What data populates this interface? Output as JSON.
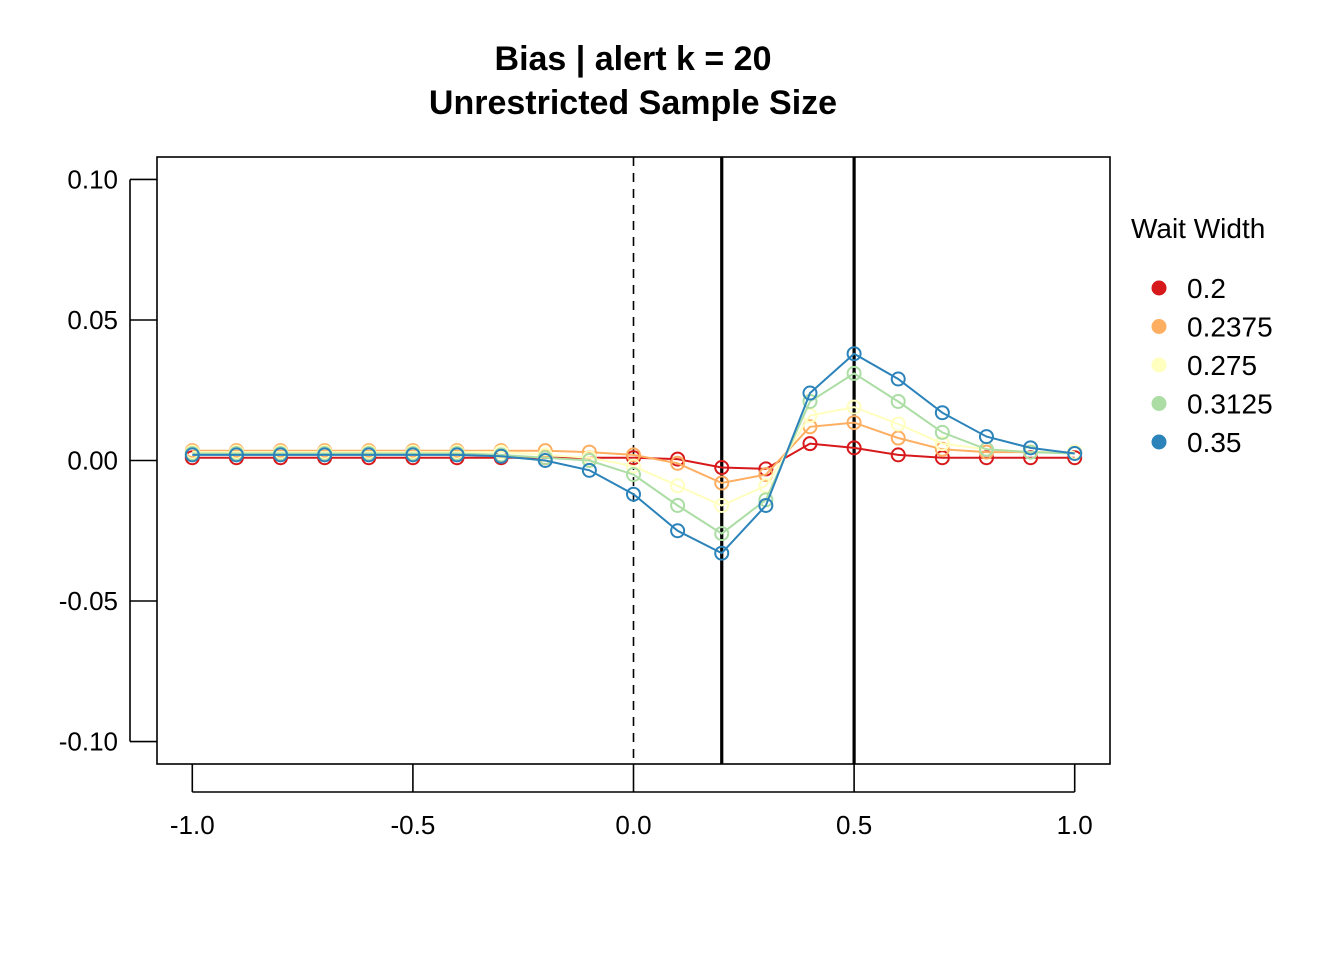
{
  "chart_data": {
    "type": "line",
    "title": "Bias | alert k = 20",
    "subtitle": "Unrestricted Sample Size",
    "xlabel": "",
    "ylabel": "",
    "xlim": [
      -1.08,
      1.08
    ],
    "ylim": [
      -0.108,
      0.108
    ],
    "x_ticks": [
      -1.0,
      -0.5,
      0.0,
      0.5,
      1.0
    ],
    "x_tick_labels": [
      "-1.0",
      "-0.5",
      "0.0",
      "0.5",
      "1.0"
    ],
    "y_ticks": [
      -0.1,
      -0.05,
      0.0,
      0.05,
      0.1
    ],
    "y_tick_labels": [
      "-0.10",
      "-0.05",
      "0.00",
      "0.05",
      "0.10"
    ],
    "grid": false,
    "legend": {
      "title": "Wait Width",
      "placement": "right"
    },
    "vlines": [
      {
        "x": 0.0,
        "style": "dashed"
      },
      {
        "x": 0.2,
        "style": "solid"
      },
      {
        "x": 0.5,
        "style": "solid"
      }
    ],
    "x": [
      -1.0,
      -0.9,
      -0.8,
      -0.7,
      -0.6,
      -0.5,
      -0.4,
      -0.3,
      -0.2,
      -0.1,
      0.0,
      0.1,
      0.2,
      0.3,
      0.4,
      0.5,
      0.6,
      0.7,
      0.8,
      0.9,
      1.0
    ],
    "series": [
      {
        "name": "0.2",
        "color": "#d7191c",
        "values": [
          0.001,
          0.001,
          0.001,
          0.001,
          0.001,
          0.001,
          0.001,
          0.001,
          0.001,
          0.001,
          0.001,
          0.0005,
          -0.0025,
          -0.003,
          0.006,
          0.0045,
          0.002,
          0.001,
          0.001,
          0.001,
          0.001
        ]
      },
      {
        "name": "0.2375",
        "color": "#fdae61",
        "values": [
          0.0035,
          0.0035,
          0.0035,
          0.0035,
          0.0035,
          0.0035,
          0.0035,
          0.0035,
          0.0035,
          0.003,
          0.002,
          -0.001,
          -0.008,
          -0.005,
          0.012,
          0.0135,
          0.008,
          0.004,
          0.003,
          0.003,
          0.003
        ]
      },
      {
        "name": "0.275",
        "color": "#ffffbf",
        "values": [
          0.003,
          0.003,
          0.003,
          0.003,
          0.003,
          0.003,
          0.003,
          0.003,
          0.002,
          0.001,
          -0.002,
          -0.009,
          -0.016,
          -0.009,
          0.016,
          0.019,
          0.013,
          0.006,
          0.004,
          0.003,
          0.003
        ]
      },
      {
        "name": "0.3125",
        "color": "#abdda4",
        "values": [
          0.0025,
          0.0025,
          0.0025,
          0.0025,
          0.0025,
          0.0025,
          0.0025,
          0.002,
          0.001,
          0.0,
          -0.005,
          -0.016,
          -0.026,
          -0.014,
          0.021,
          0.031,
          0.021,
          0.01,
          0.004,
          0.003,
          0.0025
        ]
      },
      {
        "name": "0.35",
        "color": "#2b83ba",
        "values": [
          0.002,
          0.002,
          0.002,
          0.002,
          0.002,
          0.002,
          0.002,
          0.0015,
          0.0,
          -0.0035,
          -0.012,
          -0.025,
          -0.033,
          -0.016,
          0.024,
          0.038,
          0.029,
          0.017,
          0.0085,
          0.0045,
          0.0025
        ]
      }
    ]
  }
}
